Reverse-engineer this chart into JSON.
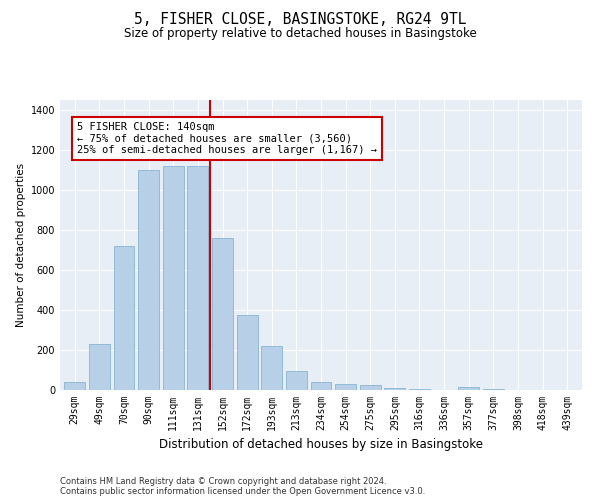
{
  "title": "5, FISHER CLOSE, BASINGSTOKE, RG24 9TL",
  "subtitle": "Size of property relative to detached houses in Basingstoke",
  "xlabel": "Distribution of detached houses by size in Basingstoke",
  "ylabel": "Number of detached properties",
  "footnote1": "Contains HM Land Registry data © Crown copyright and database right 2024.",
  "footnote2": "Contains public sector information licensed under the Open Government Licence v3.0.",
  "categories": [
    "29sqm",
    "49sqm",
    "70sqm",
    "90sqm",
    "111sqm",
    "131sqm",
    "152sqm",
    "172sqm",
    "193sqm",
    "213sqm",
    "234sqm",
    "254sqm",
    "275sqm",
    "295sqm",
    "316sqm",
    "336sqm",
    "357sqm",
    "377sqm",
    "398sqm",
    "418sqm",
    "439sqm"
  ],
  "values": [
    40,
    230,
    720,
    1100,
    1120,
    1120,
    760,
    375,
    220,
    95,
    40,
    30,
    25,
    10,
    5,
    0,
    15,
    5,
    0,
    0,
    0
  ],
  "bar_color": "#b8cfe8",
  "bar_edgecolor": "#7aaccf",
  "vline_color": "#cc0000",
  "annotation_title": "5 FISHER CLOSE: 140sqm",
  "annotation_line1": "← 75% of detached houses are smaller (3,560)",
  "annotation_line2": "25% of semi-detached houses are larger (1,167) →",
  "annotation_box_facecolor": "#ffffff",
  "annotation_box_edgecolor": "#cc0000",
  "ylim": [
    0,
    1450
  ],
  "yticks": [
    0,
    200,
    400,
    600,
    800,
    1000,
    1200,
    1400
  ],
  "title_fontsize": 10.5,
  "subtitle_fontsize": 8.5,
  "xlabel_fontsize": 8.5,
  "ylabel_fontsize": 7.5,
  "tick_fontsize": 7,
  "annotation_fontsize": 7.5,
  "footnote_fontsize": 6
}
